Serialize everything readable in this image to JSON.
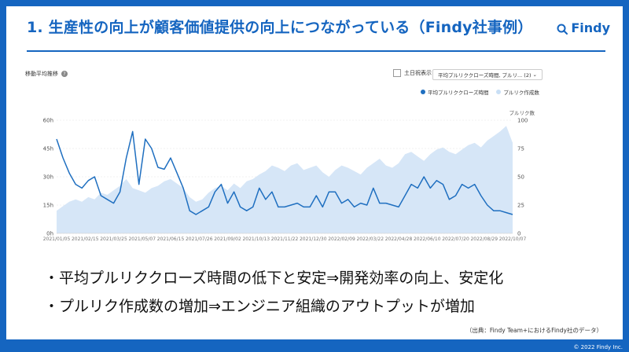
{
  "slide": {
    "title": "1. 生産性の向上が顧客価値提供の向上につながっている（Findy社事例）",
    "logo_text": "Findy",
    "bullets": [
      "・平均プルリククローズ時間の低下と安定⇒開発効率の向上、安定化",
      "・プルリク作成数の増加⇒エンジニア組織のアウトプットが増加"
    ],
    "source": "（出典：Findy Team+におけるFindy社のデータ）",
    "copyright": "© 2022 Findy Inc."
  },
  "chart_controls": {
    "chart_title": "移動平均推移",
    "help_icon": "?",
    "weekend_label": "土日祝表示",
    "select_value": "平均プルリククローズ時間, プルリ... (2)",
    "select_chevron": "⌄"
  },
  "colors": {
    "brand": "#1565c0",
    "line": "#1f6fc0",
    "area": "#d6e6f7"
  },
  "chart_data": {
    "type": "line",
    "legend": [
      {
        "name": "平均プルリククローズ時間",
        "color": "#1f6fc0"
      },
      {
        "name": "プルリク作成数",
        "color": "#c9dff5"
      }
    ],
    "x_tick_labels": [
      "2021/01/05",
      "2021/02/15",
      "2021/03/25",
      "2021/05/07",
      "2021/06/15",
      "2021/07/26",
      "2021/09/02",
      "2021/10/13",
      "2021/11/22",
      "2021/12/30",
      "2022/02/09",
      "2022/03/22",
      "2022/04/28",
      "2022/06/10",
      "2022/07/20",
      "2022/08/29",
      "2022/10/07"
    ],
    "y_left": {
      "ticks": [
        0,
        15,
        30,
        45,
        60
      ],
      "labels": [
        "0h",
        "15h",
        "30h",
        "45h",
        "60h"
      ],
      "range": [
        0,
        60
      ]
    },
    "y_right": {
      "title": "プルリク数",
      "ticks": [
        0,
        25,
        50,
        75,
        100
      ],
      "labels": [
        "0",
        "25",
        "50",
        "75",
        "100"
      ],
      "range": [
        0,
        100
      ]
    },
    "legend_position": "top-right",
    "grid": true,
    "series": [
      {
        "name": "平均プルリククローズ時間",
        "axis": "left",
        "values": [
          50,
          40,
          32,
          26,
          24,
          28,
          30,
          20,
          18,
          16,
          22,
          40,
          54,
          26,
          50,
          45,
          35,
          34,
          40,
          32,
          24,
          12,
          10,
          12,
          14,
          22,
          26,
          16,
          22,
          14,
          12,
          14,
          24,
          18,
          22,
          14,
          14,
          15,
          16,
          14,
          14,
          20,
          14,
          22,
          22,
          16,
          18,
          14,
          16,
          15,
          24,
          16,
          16,
          15,
          14,
          20,
          26,
          24,
          30,
          24,
          28,
          26,
          18,
          20,
          26,
          24,
          26,
          20,
          15,
          12,
          12,
          11,
          10
        ]
      },
      {
        "name": "プルリク作成数",
        "axis": "right",
        "values": [
          20,
          24,
          28,
          30,
          28,
          32,
          30,
          36,
          34,
          38,
          42,
          48,
          40,
          38,
          36,
          40,
          42,
          46,
          48,
          44,
          40,
          32,
          28,
          30,
          36,
          40,
          42,
          38,
          44,
          40,
          46,
          48,
          52,
          55,
          60,
          58,
          55,
          60,
          62,
          56,
          58,
          60,
          54,
          50,
          56,
          60,
          58,
          55,
          52,
          58,
          62,
          66,
          60,
          58,
          62,
          70,
          72,
          68,
          64,
          70,
          74,
          76,
          72,
          70,
          74,
          78,
          80,
          76,
          82,
          86,
          90,
          95,
          80
        ]
      }
    ]
  }
}
